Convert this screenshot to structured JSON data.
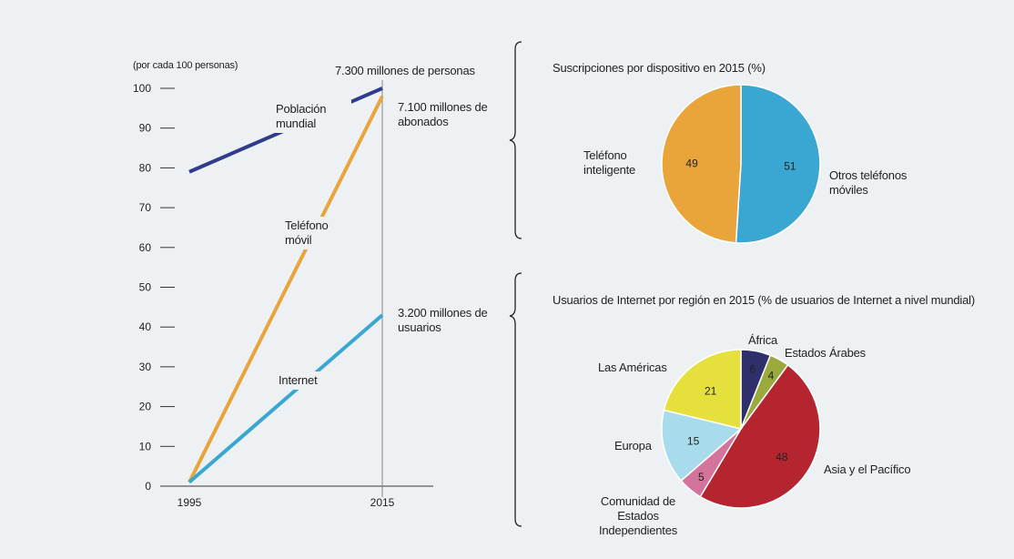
{
  "chart_data": [
    {
      "type": "line",
      "ylabel": "(por cada 100 personas)",
      "categories": [
        "1995",
        "2015"
      ],
      "series": [
        {
          "name": "Población mundial",
          "color": "#2f3b8c",
          "values": [
            79,
            100
          ]
        },
        {
          "name": "Teléfono móvil",
          "color": "#e9a53c",
          "values": [
            1,
            98
          ]
        },
        {
          "name": "Internet",
          "color": "#3aa7d2",
          "values": [
            1,
            43
          ]
        }
      ],
      "annotations": [
        "7.300 millones de personas",
        "7.100 millones de abonados",
        "3.200 millones de usuarios"
      ],
      "ylim": [
        0,
        100
      ],
      "yticks": [
        0,
        10,
        20,
        30,
        40,
        50,
        60,
        70,
        80,
        90,
        100
      ]
    },
    {
      "type": "pie",
      "title": "Suscripciones por dispositivo en 2015 (%)",
      "categories": [
        "Otros teléfonos móviles",
        "Teléfono inteligente"
      ],
      "values": [
        51,
        49
      ],
      "colors": [
        "#3aa7d2",
        "#e9a53c"
      ]
    },
    {
      "type": "pie",
      "title": "Usuarios de Internet por región en 2015 (% de usuarios de Internet a nivel mundial)",
      "categories": [
        "África",
        "Estados Árabes",
        "Asia y el Pacífico",
        "Comunidad de Estados Independientes",
        "Europa",
        "Las Américas"
      ],
      "values": [
        6,
        4,
        48,
        5,
        15,
        21
      ],
      "colors": [
        "#2f2f6b",
        "#9aaa3c",
        "#b5252f",
        "#d4739c",
        "#a8dcec",
        "#e6e03c"
      ]
    }
  ]
}
